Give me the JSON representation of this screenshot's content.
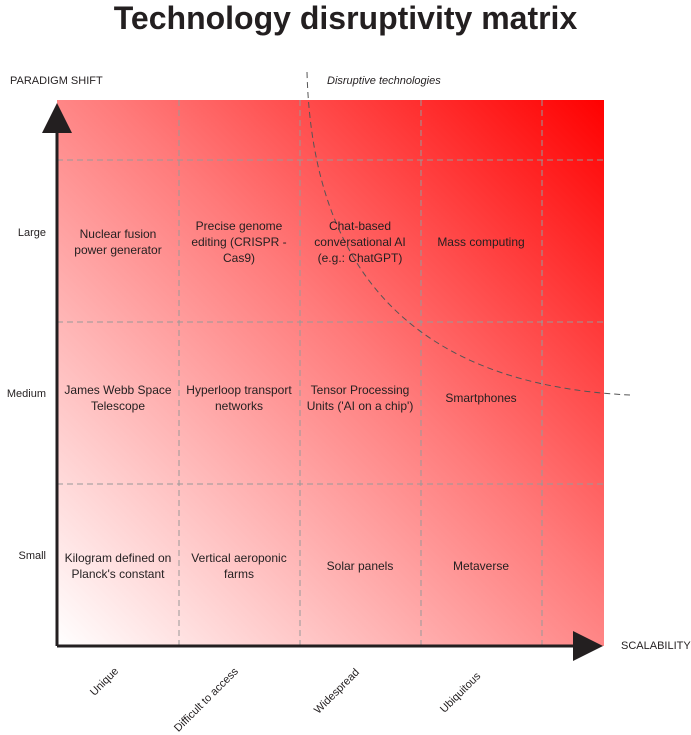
{
  "title": "Technology disruptivity matrix",
  "y_axis_label": "PARADIGM SHIFT",
  "x_axis_label": "SCALABILITY",
  "zone_label": "Disruptive technologies",
  "rows": [
    "Large",
    "Medium",
    "Small"
  ],
  "columns": [
    "Unique",
    "Difficult to access",
    "Widespread",
    "Ubiquitous"
  ],
  "colors": {
    "accent": "#ff0000",
    "grid": "#999999",
    "axis": "#231f20"
  },
  "cells": [
    {
      "row": "Large",
      "column": "Unique",
      "text": "Nuclear fusion power generator"
    },
    {
      "row": "Large",
      "column": "Difficult to access",
      "text": "Precise genome editing (CRISPR - Cas9)"
    },
    {
      "row": "Large",
      "column": "Widespread",
      "text": "Chat-based conversational AI (e.g.: ChatGPT)"
    },
    {
      "row": "Large",
      "column": "Ubiquitous",
      "text": "Mass computing"
    },
    {
      "row": "Medium",
      "column": "Unique",
      "text": "James Webb Space Telescope"
    },
    {
      "row": "Medium",
      "column": "Difficult to access",
      "text": "Hyperloop transport networks"
    },
    {
      "row": "Medium",
      "column": "Widespread",
      "text": "Tensor Processing Units ('AI on a chip')"
    },
    {
      "row": "Medium",
      "column": "Ubiquitous",
      "text": "Smartphones"
    },
    {
      "row": "Small",
      "column": "Unique",
      "text": "Kilogram defined on Planck's constant"
    },
    {
      "row": "Small",
      "column": "Difficult to access",
      "text": "Vertical aeroponic farms"
    },
    {
      "row": "Small",
      "column": "Widespread",
      "text": "Solar panels"
    },
    {
      "row": "Small",
      "column": "Ubiquitous",
      "text": "Metaverse"
    }
  ]
}
